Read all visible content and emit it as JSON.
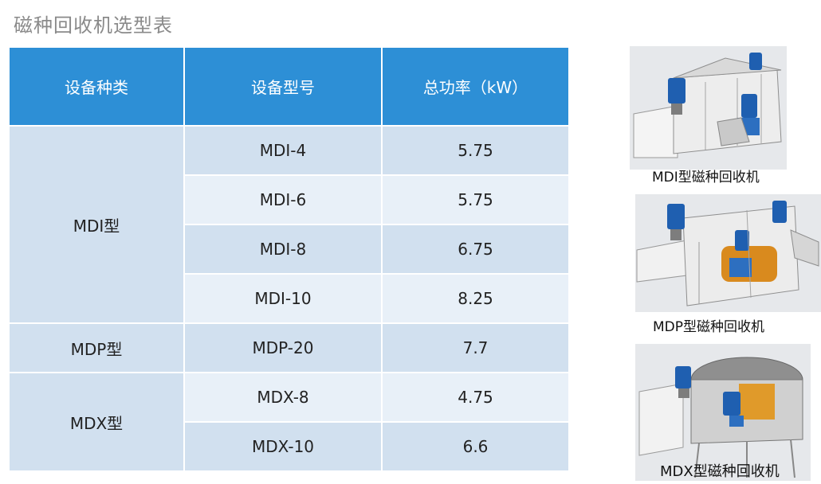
{
  "title": "磁种回收机选型表",
  "table": {
    "headers": [
      "设备种类",
      "设备型号",
      "总功率（kW）"
    ],
    "groups": [
      {
        "category": "MDI型",
        "rows": [
          {
            "model": "MDI-4",
            "power": "5.75"
          },
          {
            "model": "MDI-6",
            "power": "5.75"
          },
          {
            "model": "MDI-8",
            "power": "6.75"
          },
          {
            "model": "MDI-10",
            "power": "8.25"
          }
        ]
      },
      {
        "category": "MDP型",
        "rows": [
          {
            "model": "MDP-20",
            "power": "7.7"
          }
        ]
      },
      {
        "category": "MDX型",
        "rows": [
          {
            "model": "MDX-8",
            "power": "4.75"
          },
          {
            "model": "MDX-10",
            "power": "6.6"
          }
        ]
      }
    ]
  },
  "images": [
    {
      "caption": "MDI型磁种回收机"
    },
    {
      "caption": "MDP型磁种回收机"
    },
    {
      "caption": "MDX型磁种回收机"
    }
  ],
  "colors": {
    "header_bg": "#2d8fd6",
    "row_dark": "#d1e0ef",
    "row_light": "#e8f0f8",
    "motor_blue": "#1f5fb0",
    "drum_orange": "#d98a1e"
  }
}
